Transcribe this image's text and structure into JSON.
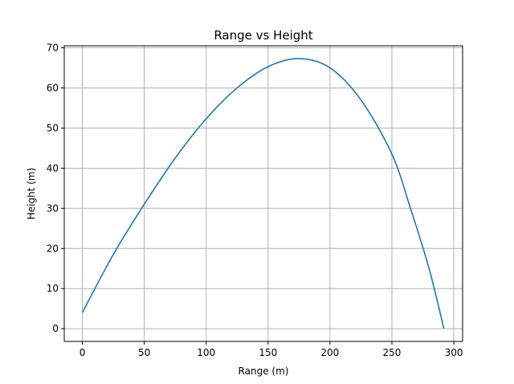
{
  "chart_data": {
    "type": "line",
    "title": "Range vs Height",
    "xlabel": "Range (m)",
    "ylabel": "Height (m)",
    "xlim": [
      -14.6,
      307.1
    ],
    "ylim": [
      -3.17,
      70.5
    ],
    "xticks": [
      0,
      50,
      100,
      150,
      200,
      250,
      300
    ],
    "yticks": [
      0,
      10,
      20,
      30,
      40,
      50,
      60,
      70
    ],
    "grid": true,
    "series": [
      {
        "color": "#1f77b4",
        "x": [
          0,
          25,
          50,
          75,
          100,
          125,
          150,
          175,
          200,
          225,
          250,
          265,
          280,
          292
        ],
        "y": [
          4,
          18.5,
          31,
          42.5,
          52.3,
          60,
          65.3,
          67.3,
          65,
          57,
          43.5,
          30,
          15,
          0
        ]
      }
    ]
  }
}
